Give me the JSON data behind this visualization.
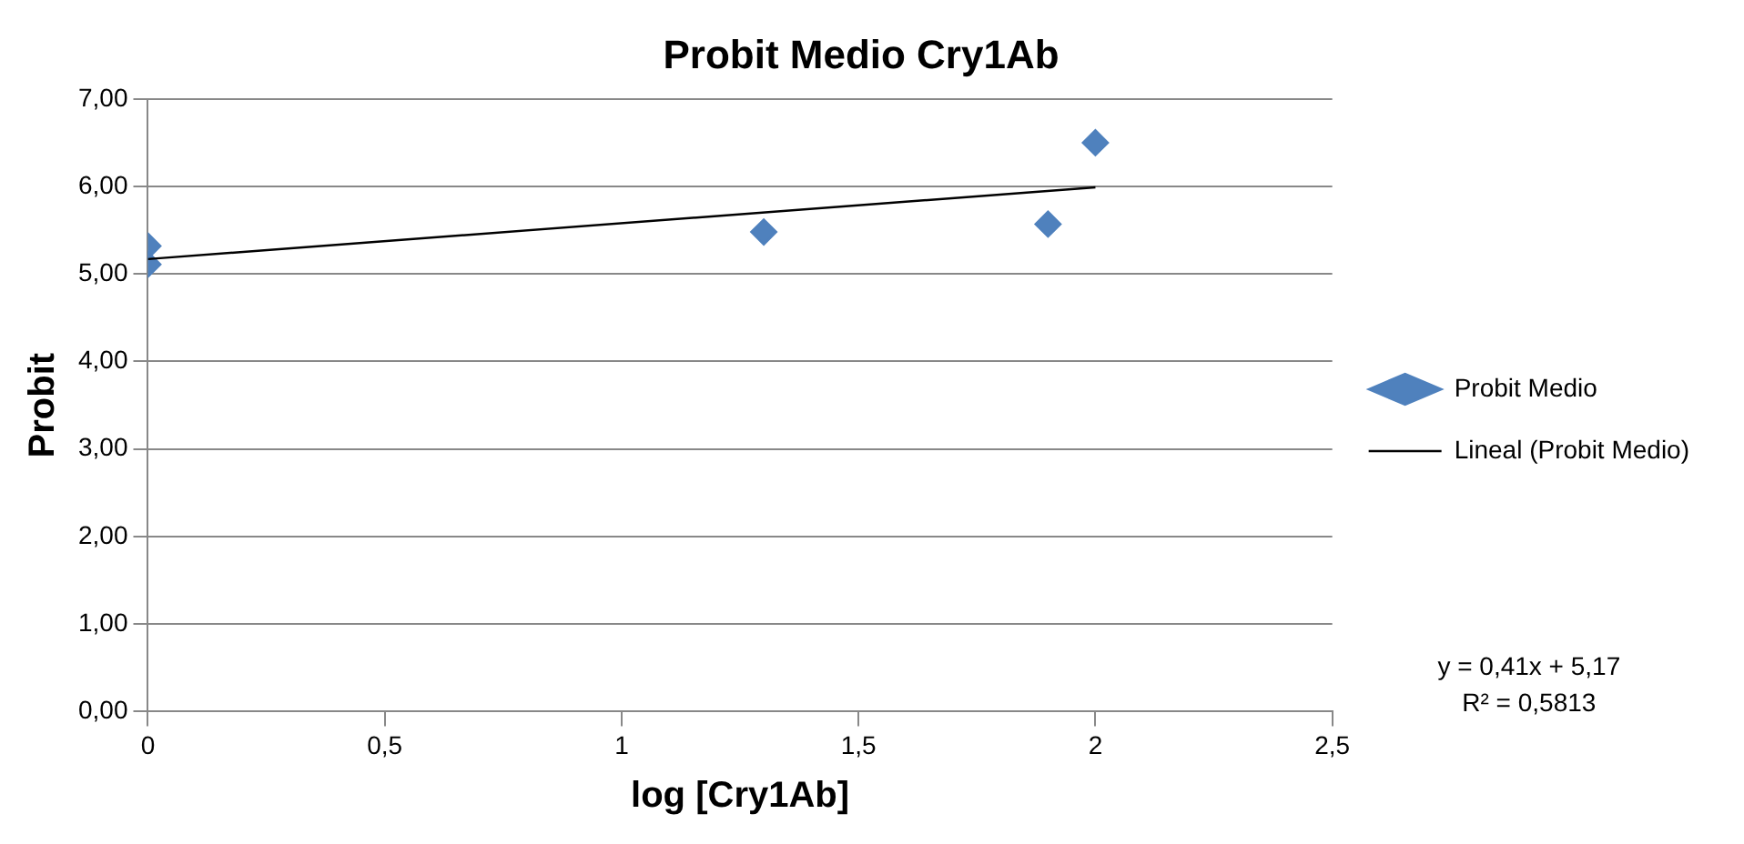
{
  "chart_data": {
    "type": "scatter",
    "title": "Probit Medio Cry1Ab",
    "xlabel": "log [Cry1Ab]",
    "ylabel": "Probit",
    "x": [
      0,
      0,
      1.3,
      1.9,
      2
    ],
    "series": [
      {
        "name": "Probit Medio",
        "color": "#4f81bd",
        "values": [
          5.32,
          5.11,
          5.48,
          5.57,
          6.5
        ],
        "marker": "diamond"
      },
      {
        "name": "Lineal (Probit Medio)",
        "type": "line",
        "color": "#000000",
        "x": [
          0,
          2
        ],
        "values": [
          5.17,
          5.99
        ],
        "marker": "none"
      }
    ],
    "xlim": [
      0,
      2.5
    ],
    "xticks": [
      0,
      {
        "value": 0.5,
        "label": "0,5"
      },
      1,
      {
        "value": 1.5,
        "label": "1,5"
      },
      2,
      {
        "value": 2.5,
        "label": "2,5"
      }
    ],
    "ylim": [
      0,
      7
    ],
    "yticks": [
      {
        "value": 0,
        "label": "0,00"
      },
      {
        "value": 1,
        "label": "1,00"
      },
      {
        "value": 2,
        "label": "2,00"
      },
      {
        "value": 3,
        "label": "3,00"
      },
      {
        "value": 4,
        "label": "4,00"
      },
      {
        "value": 5,
        "label": "5,00"
      },
      {
        "value": 6,
        "label": "6,00"
      },
      {
        "value": 7,
        "label": "7,00"
      }
    ],
    "grid": "y",
    "legend": "right",
    "annotations": [
      "y = 0,41x + 5,17",
      "R² = 0,5813"
    ]
  }
}
